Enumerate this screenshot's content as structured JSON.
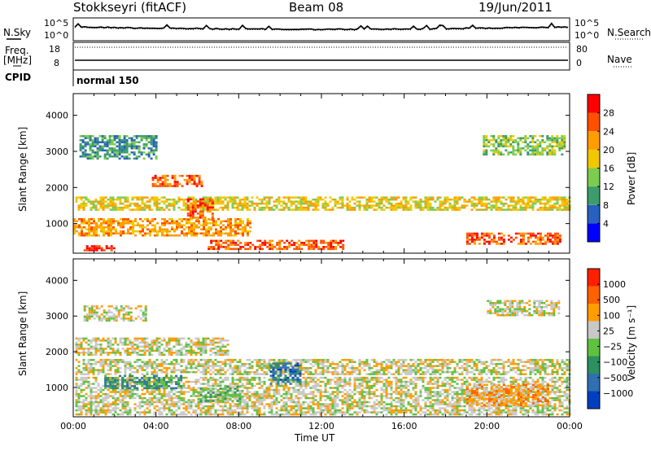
{
  "header": {
    "station": "Stokkseyri (fitACF)",
    "beam": "Beam 08",
    "date": "19/Jun/2011"
  },
  "ancillary": {
    "nsky_label": "N.Sky",
    "nsky_ticks": [
      "10^5",
      "10^0"
    ],
    "nsearch_label": "N.Search",
    "nsearch_ticks": [
      "10^5",
      "10^0"
    ],
    "freq_label": "Freq.",
    "freq_unit": "[MHz]",
    "freq_ticks": [
      "18",
      "8"
    ],
    "nave_label": "Nave",
    "nave_ticks": [
      "80",
      "0"
    ],
    "cpid_label": "CPID",
    "cpid_value": "normal 150"
  },
  "chart_data": [
    {
      "type": "heatmap",
      "name": "power",
      "ylabel": "Slant Range [km]",
      "yticks": [
        "4000",
        "3000",
        "2000",
        "1000"
      ],
      "colorbar_label": "Power [dB]",
      "colorbar_ticks": [
        "28",
        "24",
        "20",
        "16",
        "12",
        "8",
        "4"
      ],
      "colors": [
        "#0000ff",
        "#2860c0",
        "#3c9c6c",
        "#7ccc50",
        "#f0c800",
        "#ff9c00",
        "#ff5000",
        "#ff0000"
      ],
      "bands": [
        {
          "t0": 0.1,
          "t1": 24,
          "r0": 1380,
          "r1": 1750,
          "level": 4
        },
        {
          "t0": 0.0,
          "t1": 8.5,
          "r0": 650,
          "r1": 1150,
          "level": 5
        },
        {
          "t0": 3.8,
          "t1": 6.2,
          "r0": 2050,
          "r1": 2350,
          "level": 6
        },
        {
          "t0": 5.5,
          "t1": 6.7,
          "r0": 1100,
          "r1": 1700,
          "level": 6
        },
        {
          "t0": 6.5,
          "t1": 13.0,
          "r0": 280,
          "r1": 550,
          "level": 6
        },
        {
          "t0": 0.3,
          "t1": 4.0,
          "r0": 2800,
          "r1": 3450,
          "level": 2
        },
        {
          "t0": 19.8,
          "t1": 23.8,
          "r0": 2900,
          "r1": 3450,
          "level": 3
        },
        {
          "t0": 19.0,
          "t1": 23.5,
          "r0": 450,
          "r1": 750,
          "level": 6
        },
        {
          "t0": 0.5,
          "t1": 2.0,
          "r0": 250,
          "r1": 400,
          "level": 7
        }
      ]
    },
    {
      "type": "heatmap",
      "name": "velocity",
      "ylabel": "Slant Range [km]",
      "xlabel": "Time UT",
      "yticks": [
        "4000",
        "3000",
        "2000",
        "1000"
      ],
      "xticks": [
        "00:00",
        "04:00",
        "08:00",
        "12:00",
        "16:00",
        "20:00",
        "00:00"
      ],
      "xlim": [
        0,
        24
      ],
      "ylim": [
        180,
        4600
      ],
      "colorbar_label": "Velocity [m s⁻¹]",
      "colorbar_ticks": [
        "1000",
        "500",
        "100",
        "25",
        "−25",
        "−100",
        "−500",
        "−1000"
      ],
      "colors": [
        "#0040c0",
        "#3070b0",
        "#2c9060",
        "#60c040",
        "#c8c8c8",
        "#ff9c00",
        "#ff6000",
        "#ff2000"
      ],
      "bands": [
        {
          "t0": 0.1,
          "t1": 24,
          "r0": 1350,
          "r1": 1800,
          "level": 4
        },
        {
          "t0": 0.1,
          "t1": 7.5,
          "r0": 1900,
          "r1": 2400,
          "level": 4
        },
        {
          "t0": 0.1,
          "t1": 24,
          "r0": 250,
          "r1": 1300,
          "level": 4
        },
        {
          "t0": 0.5,
          "t1": 3.5,
          "r0": 2900,
          "r1": 3300,
          "level": 4
        },
        {
          "t0": 20.0,
          "t1": 23.5,
          "r0": 3000,
          "r1": 3450,
          "level": 4
        },
        {
          "t0": 1.5,
          "t1": 5.2,
          "r0": 1000,
          "r1": 1350,
          "level": 2
        },
        {
          "t0": 6.0,
          "t1": 8.2,
          "r0": 650,
          "r1": 1050,
          "level": 3
        },
        {
          "t0": 19.0,
          "t1": 23.0,
          "r0": 500,
          "r1": 1100,
          "level": 5
        },
        {
          "t0": 9.5,
          "t1": 11.0,
          "r0": 1100,
          "r1": 1700,
          "level": 1
        }
      ]
    }
  ]
}
